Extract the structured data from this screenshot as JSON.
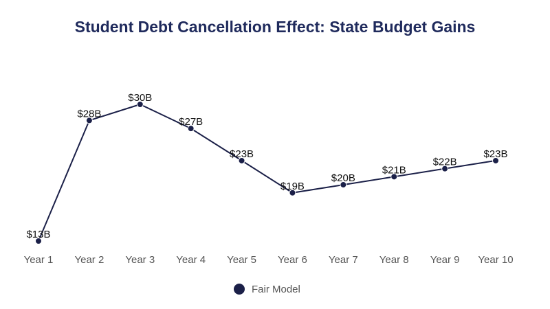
{
  "chart_data": {
    "type": "line",
    "title": "Student Debt Cancellation Effect: State Budget Gains",
    "xlabel": "",
    "ylabel": "",
    "categories": [
      "Year 1",
      "Year 2",
      "Year 3",
      "Year 4",
      "Year 5",
      "Year 6",
      "Year 7",
      "Year 8",
      "Year 9",
      "Year 10"
    ],
    "series": [
      {
        "name": "Fair Model",
        "values": [
          13,
          28,
          30,
          27,
          23,
          19,
          20,
          21,
          22,
          23
        ],
        "labels": [
          "$13B",
          "$28B",
          "$30B",
          "$27B",
          "$23B",
          "$19B",
          "$20B",
          "$21B",
          "$22B",
          "$23B"
        ],
        "color": "#1b2048"
      }
    ],
    "grid": false,
    "legend_position": "bottom"
  },
  "colors": {
    "title": "#1f2a5c",
    "series": "#1b2048",
    "tick": "#555555"
  }
}
